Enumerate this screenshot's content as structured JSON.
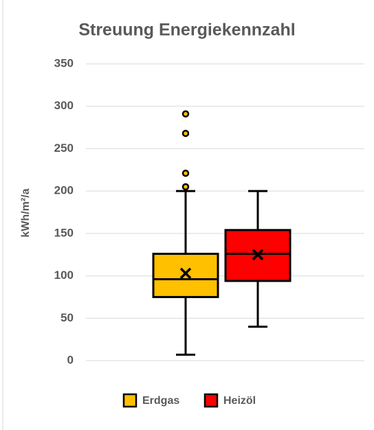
{
  "chart_data": {
    "type": "box",
    "title": "Streuung Energiekennzahl",
    "ylabel": "kWh/m²/a",
    "ylim": [
      0,
      350
    ],
    "yticks": [
      0,
      50,
      100,
      150,
      200,
      250,
      300,
      350
    ],
    "grid": true,
    "series": [
      {
        "name": "Erdgas",
        "color": "#ffc000",
        "min": 7,
        "q1": 75,
        "median": 96,
        "q3": 126,
        "max": 200,
        "mean": 103,
        "outliers": [
          205,
          221,
          268,
          291
        ]
      },
      {
        "name": "Heizöl",
        "color": "#ff0000",
        "min": 40,
        "q1": 94,
        "median": 126,
        "q3": 154,
        "max": 200,
        "mean": 125,
        "outliers": []
      }
    ]
  }
}
